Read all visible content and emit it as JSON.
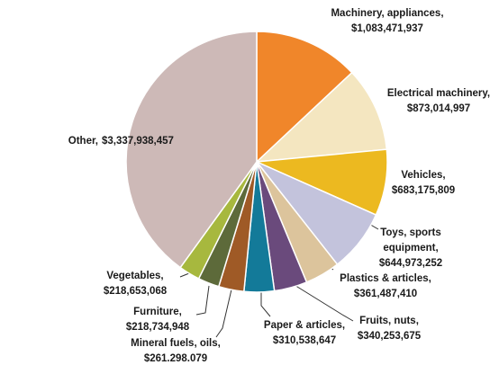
{
  "chart_data": {
    "type": "pie",
    "categories": [
      "Machinery, appliances,",
      "Electrical machinery,",
      "Vehicles,",
      "Toys, sports equipment,",
      "Plastics & articles,",
      "Fruits, nuts,",
      "Paper & articles,",
      "Mineral fuels, oils,",
      "Furniture,",
      "Vegetables,",
      "Other,"
    ],
    "values": [
      1083471937,
      873014997,
      683175809,
      644973252,
      361487410,
      340253675,
      310538647,
      261298079,
      218734948,
      218653068,
      3337938457
    ],
    "value_labels": [
      "$1,083,471,937",
      "$873,014,997",
      "$683,175,809",
      "$644,973,252",
      "$361,487,410",
      "$340,253,675",
      "$310,538,647",
      "$261.298.079",
      "$218,734,948",
      "$218,653,068",
      "$3,337,938,457"
    ],
    "colors": [
      "#f0862a",
      "#f4e6c0",
      "#ecb920",
      "#c3c3dc",
      "#dcc49c",
      "#6a4a7c",
      "#137a99",
      "#9f5a26",
      "#5d6a3a",
      "#a7b83e",
      "#cdb9b7"
    ]
  }
}
